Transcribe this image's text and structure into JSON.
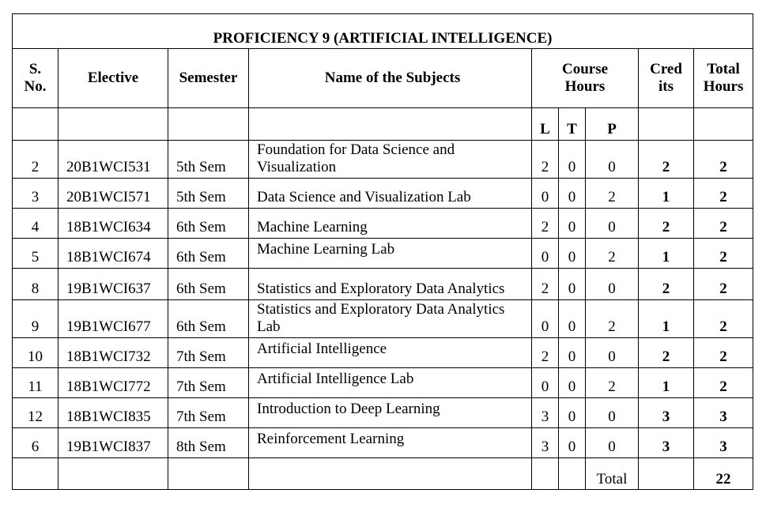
{
  "title": "PROFICIENCY 9 (ARTIFICIAL INTELLIGENCE)",
  "headers": {
    "sno": "S. No.",
    "elective": "Elective",
    "semester": "Semester",
    "subject": "Name of the Subjects",
    "course_hours": "Course Hours",
    "credits": "Cred its",
    "total_hours": "Total Hours"
  },
  "ltp": [
    "L",
    "T",
    "P"
  ],
  "rows": [
    {
      "sno": "2",
      "code": "20B1WCI531",
      "sem": "5th Sem",
      "subject": "Foundation for Data Science and Visualization",
      "L": "2",
      "T": "0",
      "P": "0",
      "credits": "2",
      "hours": "2"
    },
    {
      "sno": "3",
      "code": "20B1WCI571",
      "sem": "5th Sem",
      "subject": "Data Science and Visualization Lab",
      "L": "0",
      "T": "0",
      "P": "2",
      "credits": "1",
      "hours": "2"
    },
    {
      "sno": "4",
      "code": "18B1WCI634",
      "sem": "6th Sem",
      "subject": "Machine Learning",
      "L": "2",
      "T": "0",
      "P": "0",
      "credits": "2",
      "hours": "2"
    },
    {
      "sno": "5",
      "code": "18B1WCI674",
      "sem": "6th Sem",
      "subject": "Machine Learning Lab",
      "L": "0",
      "T": "0",
      "P": "2",
      "credits": "1",
      "hours": "2"
    },
    {
      "sno": "8",
      "code": "19B1WCI637",
      "sem": "6th Sem",
      "subject": "Statistics and Exploratory Data Analytics",
      "L": "2",
      "T": "0",
      "P": "0",
      "credits": "2",
      "hours": "2"
    },
    {
      "sno": "9",
      "code": "19B1WCI677",
      "sem": "6th Sem",
      "subject": "Statistics and Exploratory Data Analytics Lab",
      "L": "0",
      "T": "0",
      "P": "2",
      "credits": "1",
      "hours": "2"
    },
    {
      "sno": "10",
      "code": "18B1WCI732",
      "sem": "7th Sem",
      "subject": "Artificial Intelligence",
      "L": "2",
      "T": "0",
      "P": "0",
      "credits": "2",
      "hours": "2"
    },
    {
      "sno": "11",
      "code": "18B1WCI772",
      "sem": "7th Sem",
      "subject": "Artificial Intelligence Lab",
      "L": "0",
      "T": "0",
      "P": "2",
      "credits": "1",
      "hours": "2"
    },
    {
      "sno": "12",
      "code": "18B1WCI835",
      "sem": "7th Sem",
      "subject": "Introduction to Deep Learning",
      "L": "3",
      "T": "0",
      "P": "0",
      "credits": "3",
      "hours": "3"
    },
    {
      "sno": "6",
      "code": "19B1WCI837",
      "sem": "8th Sem",
      "subject": "Reinforcement Learning",
      "L": "3",
      "T": "0",
      "P": "0",
      "credits": "3",
      "hours": "3"
    }
  ],
  "footer": {
    "total_label": "Total",
    "total_value": "22"
  }
}
